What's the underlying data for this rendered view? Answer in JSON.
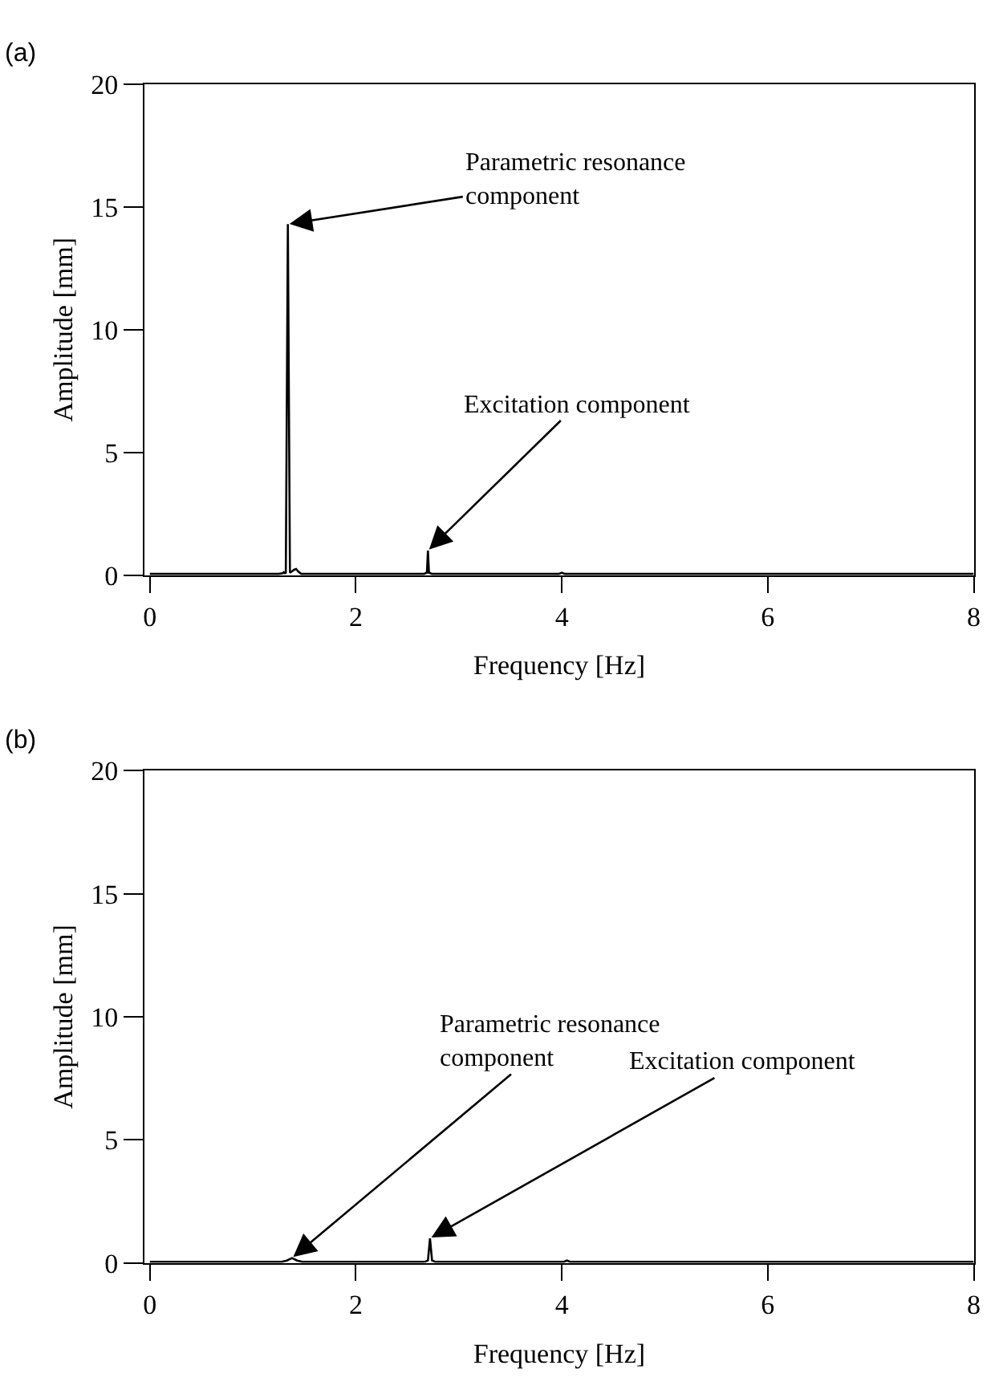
{
  "chart_data": [
    {
      "type": "line",
      "xlabel": "Frequency [Hz]",
      "ylabel": "Amplitude [mm]",
      "x": [
        0,
        1.25,
        1.29,
        1.3,
        1.31,
        1.32,
        1.34,
        1.36,
        1.38,
        1.4,
        1.42,
        1.44,
        1.47,
        1.5,
        2.66,
        2.69,
        2.7,
        2.71,
        2.74,
        3.97,
        4.0,
        4.03,
        8
      ],
      "series": [
        {
          "color": "#000000",
          "values": [
            0.05,
            0.05,
            0.08,
            0.12,
            0.08,
            0.1,
            14.3,
            0.1,
            0.15,
            0.22,
            0.25,
            0.15,
            0.05,
            0.05,
            0.05,
            0.1,
            1.0,
            0.1,
            0.05,
            0.05,
            0.1,
            0.05,
            0.05
          ]
        }
      ],
      "xlim": [
        -0.05,
        8
      ],
      "ylim": [
        0,
        20
      ],
      "xticks": [
        0,
        2,
        4,
        6,
        8
      ],
      "yticks": [
        0,
        5,
        10,
        15,
        20
      ],
      "grid": false,
      "annotations": [
        "(a)",
        {
          "text": "Parametric resonance\ncomponent",
          "x": 1.34,
          "y": 14.3
        },
        {
          "text": "Excitation component",
          "x": 2.7,
          "y": 1.0
        }
      ]
    },
    {
      "type": "line",
      "xlabel": "Frequency [Hz]",
      "ylabel": "Amplitude [mm]",
      "x": [
        0,
        1.28,
        1.33,
        1.38,
        1.43,
        1.48,
        2.67,
        2.7,
        2.72,
        2.74,
        2.77,
        4.02,
        4.05,
        4.08,
        8
      ],
      "series": [
        {
          "color": "#000000",
          "values": [
            0.05,
            0.05,
            0.1,
            0.2,
            0.1,
            0.05,
            0.05,
            0.1,
            1.0,
            0.1,
            0.05,
            0.05,
            0.1,
            0.05,
            0.05
          ]
        }
      ],
      "xlim": [
        -0.05,
        8
      ],
      "ylim": [
        0,
        20
      ],
      "xticks": [
        0,
        2,
        4,
        6,
        8
      ],
      "yticks": [
        0,
        5,
        10,
        15,
        20
      ],
      "grid": false,
      "annotations": [
        "(b)",
        {
          "text": "Parametric resonance\ncomponent",
          "x": 1.38,
          "y": 0.2
        },
        {
          "text": "Excitation component",
          "x": 2.72,
          "y": 1.0
        }
      ]
    }
  ]
}
